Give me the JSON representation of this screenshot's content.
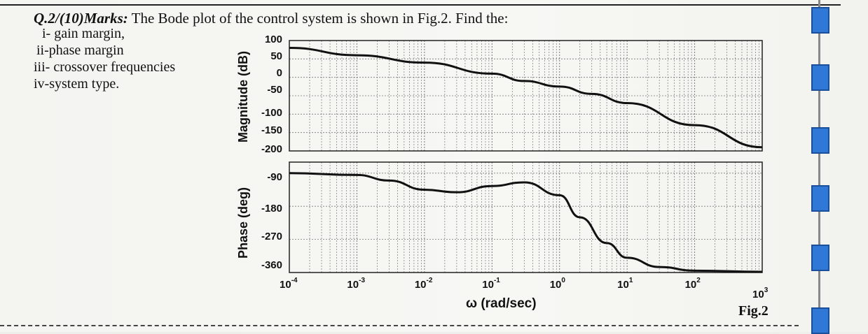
{
  "question": {
    "head": "Q.2/(10)Marks:",
    "text": " The Bode plot of the control system is shown in Fig.2. Find the:",
    "items": [
      "i- gain margin,",
      "ii-phase margin",
      "iii- crossover frequencies",
      "iv-system type."
    ]
  },
  "figure_label": "Fig.2",
  "chart_data": [
    {
      "type": "line",
      "ylabel": "Magnitude (dB)",
      "xscale": "log",
      "xlim": [
        0.0001,
        1000
      ],
      "ylim": [
        -200,
        100
      ],
      "yticks": [
        "100",
        "50",
        "0",
        "-50",
        "-100",
        "-150",
        "-200"
      ],
      "grid": true,
      "series": [
        {
          "x": [
            0.0001,
            0.001,
            0.01,
            0.1,
            0.3,
            1,
            3,
            10,
            100,
            1000
          ],
          "values": [
            80,
            60,
            40,
            10,
            -10,
            -25,
            -45,
            -70,
            -130,
            -190
          ]
        }
      ]
    },
    {
      "type": "line",
      "ylabel": "Phase (deg)",
      "xscale": "log",
      "xlim": [
        0.0001,
        1000
      ],
      "ylim": [
        -360,
        -60
      ],
      "yticks": [
        "-90",
        "-180",
        "-270",
        "-360"
      ],
      "grid": true,
      "series": [
        {
          "x": [
            0.0001,
            0.001,
            0.003,
            0.01,
            0.03,
            0.1,
            0.3,
            1,
            2,
            5,
            10,
            30,
            100,
            1000
          ],
          "values": [
            -90,
            -95,
            -110,
            -135,
            -142,
            -125,
            -115,
            -150,
            -210,
            -280,
            -320,
            -345,
            -355,
            -358
          ]
        }
      ],
      "xlabel": "ω (rad/sec)",
      "xticks": [
        "10^-4",
        "10^-3",
        "10^-2",
        "10^-1",
        "10^0",
        "10^1",
        "10^2",
        "10^3"
      ]
    }
  ]
}
